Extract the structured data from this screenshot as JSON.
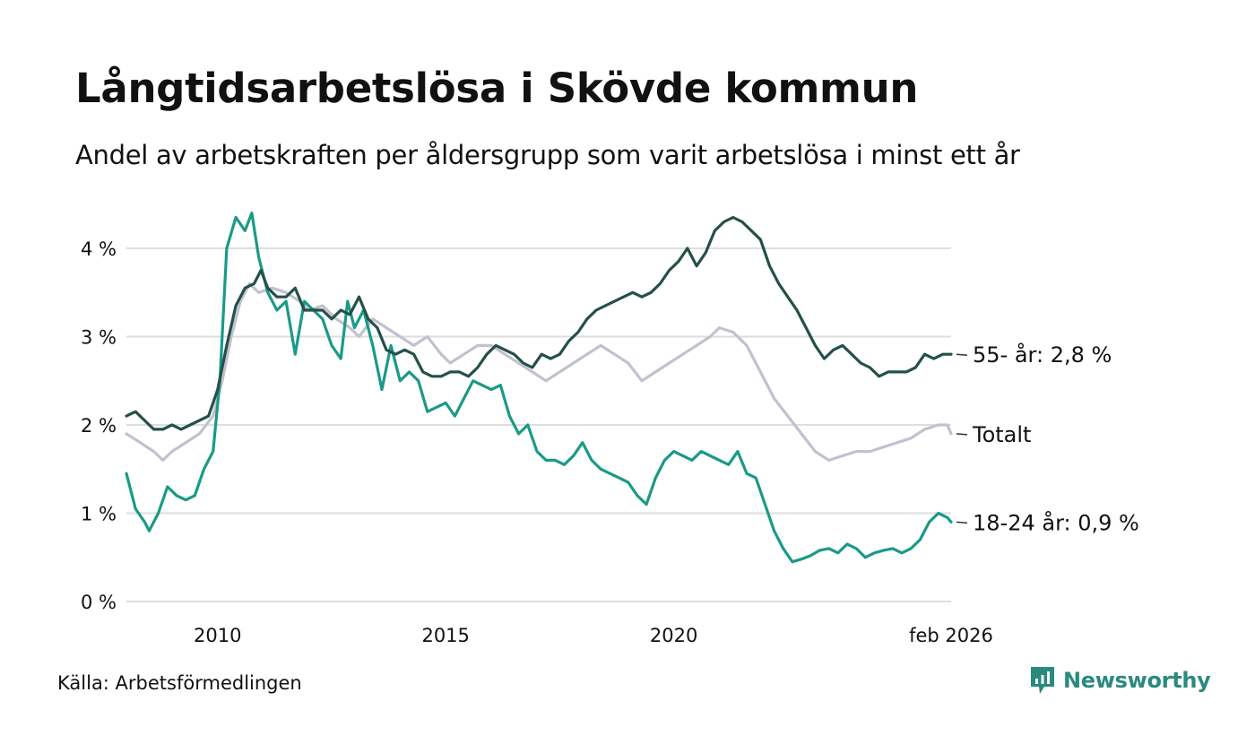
{
  "title": "Långtidsarbetslösa i Skövde kommun",
  "subtitle": "Andel av arbetskraften per åldersgrupp som varit arbetslösa i minst ett år",
  "source": "Källa: Arbetsförmedlingen",
  "brand": "Newsworthy",
  "colors": {
    "age55": "#24504a",
    "age18_24": "#1a9a87",
    "total": "#c3c1cf",
    "grid": "#dedede",
    "brand": "#2b8a7e"
  },
  "chart_data": {
    "type": "line",
    "title": "Långtidsarbetslösa i Skövde kommun",
    "xlabel": "",
    "ylabel": "",
    "x_range": [
      2008.0,
      2026.08
    ],
    "ylim": [
      0,
      4.4
    ],
    "y_ticks": [
      {
        "value": 0,
        "label": "0 %"
      },
      {
        "value": 1,
        "label": "1 %"
      },
      {
        "value": 2,
        "label": "2 %"
      },
      {
        "value": 3,
        "label": "3 %"
      },
      {
        "value": 4,
        "label": "4 %"
      }
    ],
    "x_ticks": [
      {
        "value": 2010,
        "label": "2010"
      },
      {
        "value": 2015,
        "label": "2015"
      },
      {
        "value": 2020,
        "label": "2020"
      },
      {
        "value": 2026.08,
        "label": "feb 2026"
      }
    ],
    "grid": true,
    "series": [
      {
        "key": "total",
        "name": "Totalt",
        "end_label": "Totalt",
        "points": [
          [
            2008.0,
            1.9
          ],
          [
            2008.3,
            1.8
          ],
          [
            2008.6,
            1.7
          ],
          [
            2008.8,
            1.6
          ],
          [
            2009.0,
            1.7
          ],
          [
            2009.3,
            1.8
          ],
          [
            2009.6,
            1.9
          ],
          [
            2009.9,
            2.1
          ],
          [
            2010.1,
            2.5
          ],
          [
            2010.3,
            3.0
          ],
          [
            2010.5,
            3.4
          ],
          [
            2010.7,
            3.6
          ],
          [
            2010.9,
            3.5
          ],
          [
            2011.2,
            3.55
          ],
          [
            2011.5,
            3.5
          ],
          [
            2011.8,
            3.4
          ],
          [
            2012.0,
            3.3
          ],
          [
            2012.3,
            3.35
          ],
          [
            2012.6,
            3.2
          ],
          [
            2012.9,
            3.1
          ],
          [
            2013.1,
            3.0
          ],
          [
            2013.4,
            3.2
          ],
          [
            2013.7,
            3.1
          ],
          [
            2014.0,
            3.0
          ],
          [
            2014.3,
            2.9
          ],
          [
            2014.6,
            3.0
          ],
          [
            2014.9,
            2.8
          ],
          [
            2015.1,
            2.7
          ],
          [
            2015.4,
            2.8
          ],
          [
            2015.7,
            2.9
          ],
          [
            2016.0,
            2.9
          ],
          [
            2016.3,
            2.8
          ],
          [
            2016.6,
            2.7
          ],
          [
            2016.9,
            2.6
          ],
          [
            2017.2,
            2.5
          ],
          [
            2017.5,
            2.6
          ],
          [
            2017.8,
            2.7
          ],
          [
            2018.1,
            2.8
          ],
          [
            2018.4,
            2.9
          ],
          [
            2018.7,
            2.8
          ],
          [
            2019.0,
            2.7
          ],
          [
            2019.3,
            2.5
          ],
          [
            2019.6,
            2.6
          ],
          [
            2019.9,
            2.7
          ],
          [
            2020.2,
            2.8
          ],
          [
            2020.5,
            2.9
          ],
          [
            2020.8,
            3.0
          ],
          [
            2021.0,
            3.1
          ],
          [
            2021.3,
            3.05
          ],
          [
            2021.6,
            2.9
          ],
          [
            2021.9,
            2.6
          ],
          [
            2022.2,
            2.3
          ],
          [
            2022.5,
            2.1
          ],
          [
            2022.8,
            1.9
          ],
          [
            2023.1,
            1.7
          ],
          [
            2023.4,
            1.6
          ],
          [
            2023.7,
            1.65
          ],
          [
            2024.0,
            1.7
          ],
          [
            2024.3,
            1.7
          ],
          [
            2024.6,
            1.75
          ],
          [
            2024.9,
            1.8
          ],
          [
            2025.2,
            1.85
          ],
          [
            2025.5,
            1.95
          ],
          [
            2025.8,
            2.0
          ],
          [
            2026.0,
            2.0
          ],
          [
            2026.08,
            1.9
          ]
        ]
      },
      {
        "key": "age18_24",
        "name": "18-24 år",
        "end_label": "18-24 år: 0,9 %",
        "points": [
          [
            2008.0,
            1.45
          ],
          [
            2008.2,
            1.05
          ],
          [
            2008.4,
            0.9
          ],
          [
            2008.5,
            0.8
          ],
          [
            2008.7,
            1.0
          ],
          [
            2008.9,
            1.3
          ],
          [
            2009.1,
            1.2
          ],
          [
            2009.3,
            1.15
          ],
          [
            2009.5,
            1.2
          ],
          [
            2009.7,
            1.5
          ],
          [
            2009.9,
            1.7
          ],
          [
            2010.05,
            2.5
          ],
          [
            2010.2,
            4.0
          ],
          [
            2010.4,
            4.35
          ],
          [
            2010.6,
            4.2
          ],
          [
            2010.75,
            4.4
          ],
          [
            2010.9,
            3.9
          ],
          [
            2011.1,
            3.5
          ],
          [
            2011.3,
            3.3
          ],
          [
            2011.5,
            3.4
          ],
          [
            2011.7,
            2.8
          ],
          [
            2011.9,
            3.4
          ],
          [
            2012.1,
            3.3
          ],
          [
            2012.3,
            3.2
          ],
          [
            2012.5,
            2.9
          ],
          [
            2012.7,
            2.75
          ],
          [
            2012.85,
            3.4
          ],
          [
            2013.0,
            3.1
          ],
          [
            2013.2,
            3.3
          ],
          [
            2013.4,
            2.9
          ],
          [
            2013.6,
            2.4
          ],
          [
            2013.8,
            2.9
          ],
          [
            2014.0,
            2.5
          ],
          [
            2014.2,
            2.6
          ],
          [
            2014.4,
            2.5
          ],
          [
            2014.6,
            2.15
          ],
          [
            2014.8,
            2.2
          ],
          [
            2015.0,
            2.25
          ],
          [
            2015.2,
            2.1
          ],
          [
            2015.4,
            2.3
          ],
          [
            2015.6,
            2.5
          ],
          [
            2015.8,
            2.45
          ],
          [
            2016.0,
            2.4
          ],
          [
            2016.2,
            2.45
          ],
          [
            2016.4,
            2.1
          ],
          [
            2016.6,
            1.9
          ],
          [
            2016.8,
            2.0
          ],
          [
            2017.0,
            1.7
          ],
          [
            2017.2,
            1.6
          ],
          [
            2017.4,
            1.6
          ],
          [
            2017.6,
            1.55
          ],
          [
            2017.8,
            1.65
          ],
          [
            2018.0,
            1.8
          ],
          [
            2018.2,
            1.6
          ],
          [
            2018.4,
            1.5
          ],
          [
            2018.6,
            1.45
          ],
          [
            2018.8,
            1.4
          ],
          [
            2019.0,
            1.35
          ],
          [
            2019.2,
            1.2
          ],
          [
            2019.4,
            1.1
          ],
          [
            2019.6,
            1.4
          ],
          [
            2019.8,
            1.6
          ],
          [
            2020.0,
            1.7
          ],
          [
            2020.2,
            1.65
          ],
          [
            2020.4,
            1.6
          ],
          [
            2020.6,
            1.7
          ],
          [
            2020.8,
            1.65
          ],
          [
            2021.0,
            1.6
          ],
          [
            2021.2,
            1.55
          ],
          [
            2021.4,
            1.7
          ],
          [
            2021.6,
            1.45
          ],
          [
            2021.8,
            1.4
          ],
          [
            2022.0,
            1.1
          ],
          [
            2022.2,
            0.8
          ],
          [
            2022.4,
            0.6
          ],
          [
            2022.6,
            0.45
          ],
          [
            2022.8,
            0.48
          ],
          [
            2023.0,
            0.52
          ],
          [
            2023.2,
            0.58
          ],
          [
            2023.4,
            0.6
          ],
          [
            2023.6,
            0.55
          ],
          [
            2023.8,
            0.65
          ],
          [
            2024.0,
            0.6
          ],
          [
            2024.2,
            0.5
          ],
          [
            2024.4,
            0.55
          ],
          [
            2024.6,
            0.58
          ],
          [
            2024.8,
            0.6
          ],
          [
            2025.0,
            0.55
          ],
          [
            2025.2,
            0.6
          ],
          [
            2025.4,
            0.7
          ],
          [
            2025.6,
            0.9
          ],
          [
            2025.8,
            1.0
          ],
          [
            2026.0,
            0.95
          ],
          [
            2026.08,
            0.9
          ]
        ]
      },
      {
        "key": "age55",
        "name": "55- år",
        "end_label": "55- år: 2,8 %",
        "points": [
          [
            2008.0,
            2.1
          ],
          [
            2008.2,
            2.15
          ],
          [
            2008.4,
            2.05
          ],
          [
            2008.6,
            1.95
          ],
          [
            2008.8,
            1.95
          ],
          [
            2009.0,
            2.0
          ],
          [
            2009.2,
            1.95
          ],
          [
            2009.4,
            2.0
          ],
          [
            2009.6,
            2.05
          ],
          [
            2009.8,
            2.1
          ],
          [
            2010.0,
            2.4
          ],
          [
            2010.2,
            2.9
          ],
          [
            2010.4,
            3.35
          ],
          [
            2010.6,
            3.55
          ],
          [
            2010.8,
            3.6
          ],
          [
            2010.95,
            3.75
          ],
          [
            2011.1,
            3.55
          ],
          [
            2011.3,
            3.45
          ],
          [
            2011.5,
            3.45
          ],
          [
            2011.7,
            3.55
          ],
          [
            2011.9,
            3.3
          ],
          [
            2012.1,
            3.3
          ],
          [
            2012.3,
            3.3
          ],
          [
            2012.5,
            3.2
          ],
          [
            2012.7,
            3.3
          ],
          [
            2012.9,
            3.25
          ],
          [
            2013.1,
            3.45
          ],
          [
            2013.3,
            3.2
          ],
          [
            2013.5,
            3.1
          ],
          [
            2013.7,
            2.85
          ],
          [
            2013.9,
            2.8
          ],
          [
            2014.1,
            2.85
          ],
          [
            2014.3,
            2.8
          ],
          [
            2014.5,
            2.6
          ],
          [
            2014.7,
            2.55
          ],
          [
            2014.9,
            2.55
          ],
          [
            2015.1,
            2.6
          ],
          [
            2015.3,
            2.6
          ],
          [
            2015.5,
            2.55
          ],
          [
            2015.7,
            2.65
          ],
          [
            2015.9,
            2.8
          ],
          [
            2016.1,
            2.9
          ],
          [
            2016.3,
            2.85
          ],
          [
            2016.5,
            2.8
          ],
          [
            2016.7,
            2.7
          ],
          [
            2016.9,
            2.65
          ],
          [
            2017.1,
            2.8
          ],
          [
            2017.3,
            2.75
          ],
          [
            2017.5,
            2.8
          ],
          [
            2017.7,
            2.95
          ],
          [
            2017.9,
            3.05
          ],
          [
            2018.1,
            3.2
          ],
          [
            2018.3,
            3.3
          ],
          [
            2018.5,
            3.35
          ],
          [
            2018.7,
            3.4
          ],
          [
            2018.9,
            3.45
          ],
          [
            2019.1,
            3.5
          ],
          [
            2019.3,
            3.45
          ],
          [
            2019.5,
            3.5
          ],
          [
            2019.7,
            3.6
          ],
          [
            2019.9,
            3.75
          ],
          [
            2020.1,
            3.85
          ],
          [
            2020.3,
            4.0
          ],
          [
            2020.5,
            3.8
          ],
          [
            2020.7,
            3.95
          ],
          [
            2020.9,
            4.2
          ],
          [
            2021.1,
            4.3
          ],
          [
            2021.3,
            4.35
          ],
          [
            2021.5,
            4.3
          ],
          [
            2021.7,
            4.2
          ],
          [
            2021.9,
            4.1
          ],
          [
            2022.1,
            3.8
          ],
          [
            2022.3,
            3.6
          ],
          [
            2022.5,
            3.45
          ],
          [
            2022.7,
            3.3
          ],
          [
            2022.9,
            3.1
          ],
          [
            2023.1,
            2.9
          ],
          [
            2023.3,
            2.75
          ],
          [
            2023.5,
            2.85
          ],
          [
            2023.7,
            2.9
          ],
          [
            2023.9,
            2.8
          ],
          [
            2024.1,
            2.7
          ],
          [
            2024.3,
            2.65
          ],
          [
            2024.5,
            2.55
          ],
          [
            2024.7,
            2.6
          ],
          [
            2024.9,
            2.6
          ],
          [
            2025.1,
            2.6
          ],
          [
            2025.3,
            2.65
          ],
          [
            2025.5,
            2.8
          ],
          [
            2025.7,
            2.75
          ],
          [
            2025.9,
            2.8
          ],
          [
            2026.08,
            2.8
          ]
        ]
      }
    ]
  }
}
